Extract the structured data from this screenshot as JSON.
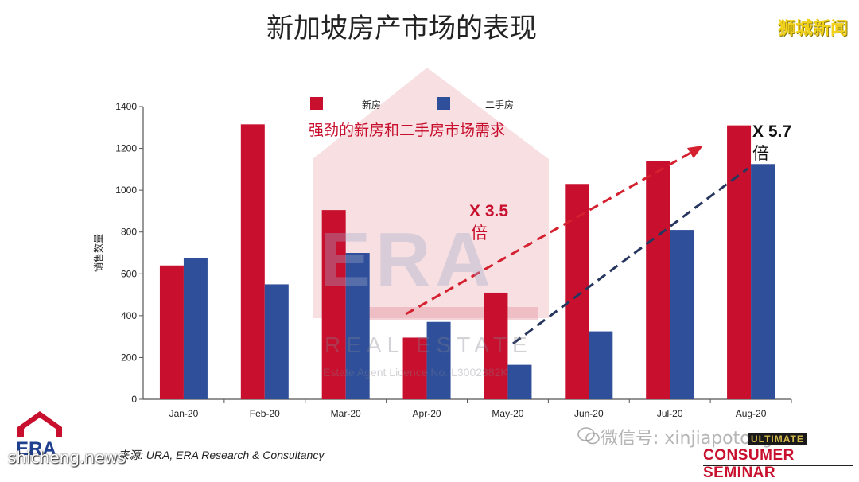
{
  "header": {
    "title": "新加坡房产市场的表现",
    "brand_tag": "狮城新闻"
  },
  "watermark": {
    "logo": "ERA",
    "sub": "REAL ESTATE",
    "licence": "Estate Agent Licence No. L3002382K",
    "site": "shicheng.news",
    "wechat": "微信号: xinjiapotong"
  },
  "footer": {
    "source": "来源: URA, ERA Research & Consultancy",
    "logo_text": "ERA",
    "seminar_top": "ULTIMATE",
    "seminar": "CONSUMER SEMINAR"
  },
  "chart_data": {
    "type": "bar",
    "title": "",
    "subtitle": "强劲的新房和二手房市场需求",
    "xlabel": "",
    "ylabel": "销售数量",
    "ylim": [
      0,
      1400
    ],
    "yticks": [
      0,
      200,
      400,
      600,
      800,
      1000,
      1200,
      1400
    ],
    "categories": [
      "Jan-20",
      "Feb-20",
      "Mar-20",
      "Apr-20",
      "May-20",
      "Jun-20",
      "Jul-20",
      "Aug-20"
    ],
    "series": [
      {
        "name": "新房",
        "color": "#c8102e",
        "values": [
          640,
          1315,
          905,
          295,
          510,
          1030,
          1140,
          1310
        ]
      },
      {
        "name": "二手房",
        "color": "#2f4f9a",
        "values": [
          675,
          550,
          700,
          370,
          165,
          325,
          810,
          1125
        ]
      }
    ],
    "legend": "top",
    "grid": false,
    "annotations": [
      {
        "text_line1": "X 3.5",
        "text_line2": "倍",
        "color": "#c8102e"
      },
      {
        "text_line1": "X 5.7",
        "text_line2": "倍",
        "color": "#111111"
      }
    ]
  }
}
